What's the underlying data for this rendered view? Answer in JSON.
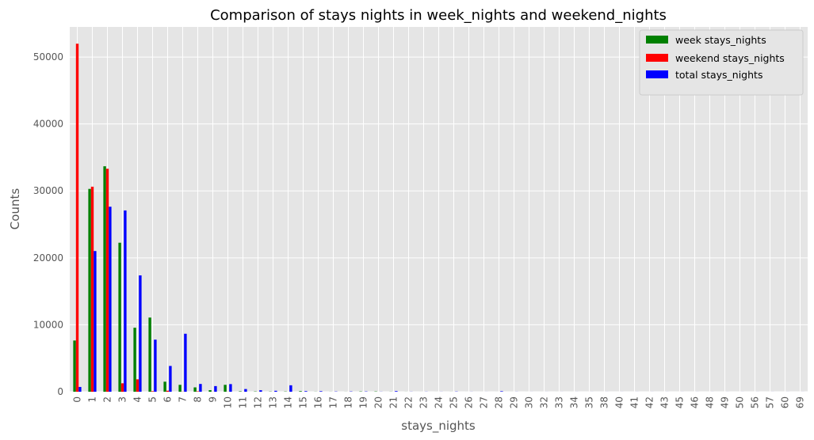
{
  "chart_data": {
    "type": "bar",
    "title": "Comparison of stays nights in week_nights and weekend_nights",
    "xlabel": "stays_nights",
    "ylabel": "Counts",
    "ylim": [
      0,
      54500
    ],
    "yticks": [
      0,
      10000,
      20000,
      30000,
      40000,
      50000
    ],
    "grid": true,
    "legend_position": "top-right",
    "categories": [
      "0",
      "1",
      "2",
      "3",
      "4",
      "5",
      "6",
      "7",
      "8",
      "9",
      "10",
      "11",
      "12",
      "13",
      "14",
      "15",
      "16",
      "17",
      "18",
      "19",
      "20",
      "21",
      "22",
      "23",
      "24",
      "25",
      "26",
      "27",
      "28",
      "29",
      "30",
      "32",
      "33",
      "34",
      "35",
      "38",
      "40",
      "41",
      "42",
      "43",
      "45",
      "46",
      "48",
      "49",
      "50",
      "56",
      "57",
      "60",
      "69"
    ],
    "series": [
      {
        "name": "week stays_nights",
        "color": "#008000",
        "values": [
          7650,
          30300,
          33680,
          22260,
          9560,
          11080,
          1500,
          1030,
          650,
          230,
          1030,
          56,
          40,
          30,
          35,
          85,
          14,
          10,
          8,
          40,
          40,
          15,
          7,
          3,
          3,
          6,
          2,
          2,
          2,
          2,
          2,
          2,
          2,
          2,
          1,
          1,
          1,
          1,
          1,
          1,
          1,
          1,
          1,
          1,
          1,
          1,
          1,
          1,
          1
        ]
      },
      {
        "name": "weekend stays_nights",
        "color": "#ff0000",
        "values": [
          51990,
          30630,
          33310,
          1260,
          1850,
          80,
          150,
          20,
          60,
          10,
          10,
          3,
          5,
          2,
          2,
          1,
          2,
          1,
          2,
          1,
          1,
          1,
          1,
          1,
          1,
          1,
          1,
          1,
          1,
          1,
          1,
          1,
          1,
          1,
          1,
          1,
          1,
          1,
          1,
          1,
          1,
          1,
          1,
          1,
          1,
          1,
          1,
          1,
          1
        ]
      },
      {
        "name": "total stays_nights",
        "color": "#0000ff",
        "values": [
          715,
          21020,
          27640,
          27080,
          17380,
          7780,
          3850,
          8660,
          1160,
          840,
          1140,
          400,
          220,
          140,
          960,
          90,
          80,
          35,
          40,
          40,
          15,
          90,
          15,
          15,
          10,
          30,
          10,
          5,
          70,
          10,
          5,
          5,
          5,
          5,
          5,
          5,
          5,
          5,
          5,
          5,
          5,
          5,
          5,
          5,
          5,
          5,
          5,
          5,
          5
        ]
      }
    ]
  }
}
